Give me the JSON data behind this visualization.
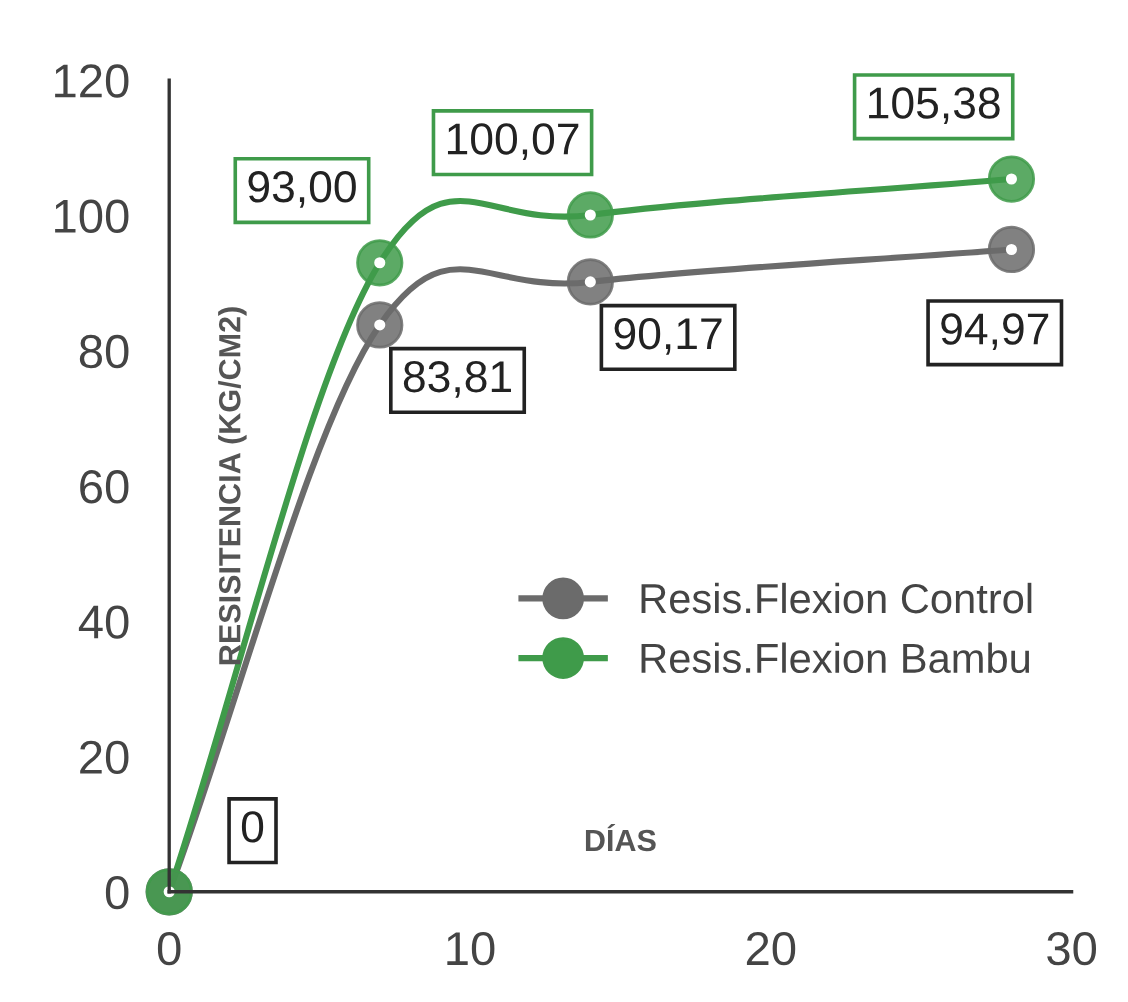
{
  "chart_data": {
    "type": "line",
    "xlabel": "DÍAS",
    "ylabel": "RESISITENCIA (KG/CM2)",
    "x": [
      0,
      7,
      14,
      28
    ],
    "series": [
      {
        "name": "Resis.Flexion Control",
        "color": "#6b6b6b",
        "values": [
          0,
          83.81,
          90.17,
          94.97
        ],
        "value_labels": [
          "0",
          "83,81",
          "90,17",
          "94,97"
        ]
      },
      {
        "name": "Resis.Flexion Bambu",
        "color": "#3f9b4a",
        "values": [
          0,
          93.0,
          100.07,
          105.38
        ],
        "value_labels": [
          null,
          "93,00",
          "100,07",
          "105,38"
        ]
      }
    ],
    "xlim": [
      0,
      30
    ],
    "xticks": [
      0,
      10,
      20,
      30
    ],
    "ylim": [
      0,
      120
    ],
    "yticks": [
      0,
      20,
      40,
      60,
      80,
      100,
      120
    ],
    "marker": "circle",
    "line_style": "solid",
    "legend": "right",
    "grid": false
  }
}
